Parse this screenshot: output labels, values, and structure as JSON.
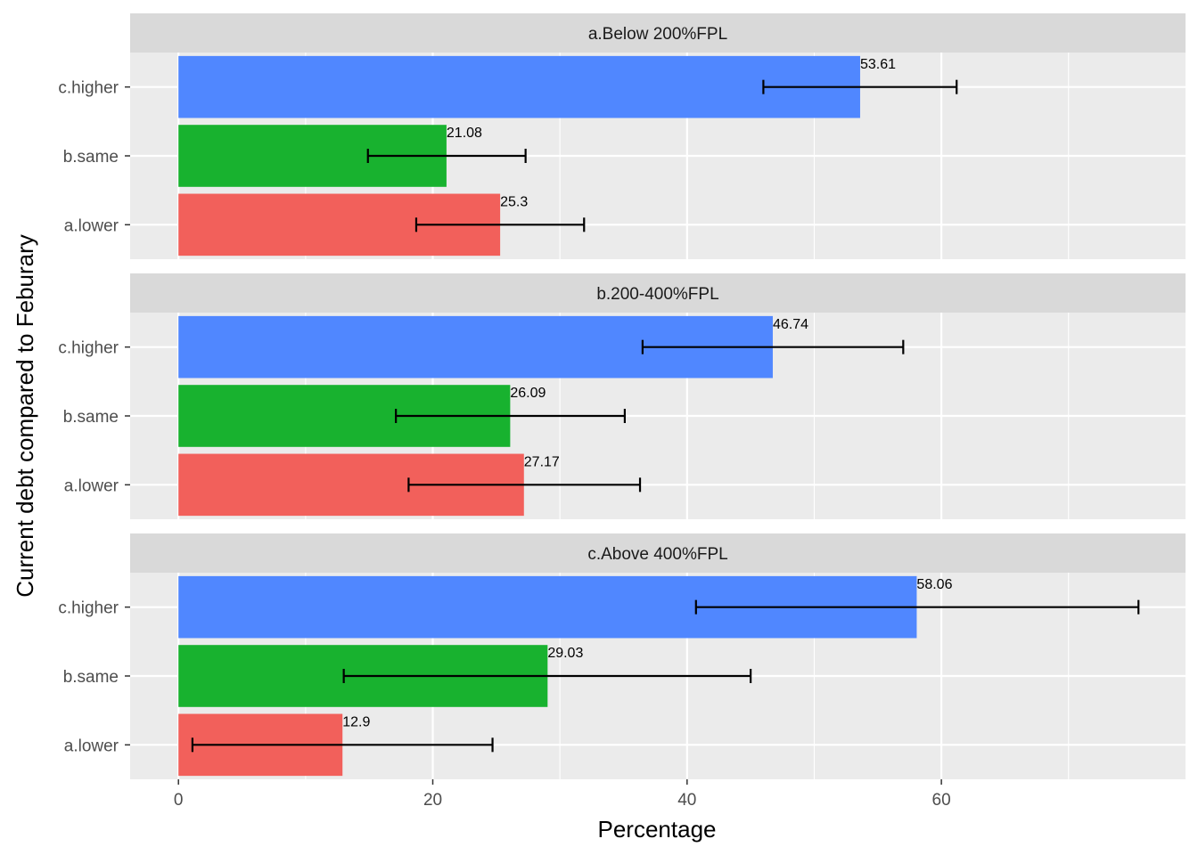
{
  "chart_data": {
    "type": "bar",
    "orientation": "horizontal",
    "xlabel": "Percentage",
    "ylabel": "Current debt compared to Feburary",
    "xlim": [
      -3.8,
      79.2
    ],
    "xticks": [
      0,
      20,
      40,
      60
    ],
    "grid": true,
    "legend": "none",
    "categories": [
      "c.higher",
      "b.same",
      "a.lower"
    ],
    "colors": {
      "c.higher": "#5087FF",
      "b.same": "#18B22F",
      "a.lower": "#F2605B"
    },
    "panels": [
      {
        "title": "a.Below 200%FPL",
        "bars": [
          {
            "category": "c.higher",
            "value": 53.61,
            "label": "53.61",
            "err_low": 46.0,
            "err_high": 61.2
          },
          {
            "category": "b.same",
            "value": 21.08,
            "label": "21.08",
            "err_low": 14.9,
            "err_high": 27.3
          },
          {
            "category": "a.lower",
            "value": 25.3,
            "label": "25.3",
            "err_low": 18.7,
            "err_high": 31.9
          }
        ]
      },
      {
        "title": "b.200-400%FPL",
        "bars": [
          {
            "category": "c.higher",
            "value": 46.74,
            "label": "46.74",
            "err_low": 36.5,
            "err_high": 57.0
          },
          {
            "category": "b.same",
            "value": 26.09,
            "label": "26.09",
            "err_low": 17.1,
            "err_high": 35.1
          },
          {
            "category": "a.lower",
            "value": 27.17,
            "label": "27.17",
            "err_low": 18.1,
            "err_high": 36.3
          }
        ]
      },
      {
        "title": "c.Above 400%FPL",
        "bars": [
          {
            "category": "c.higher",
            "value": 58.06,
            "label": "58.06",
            "err_low": 40.7,
            "err_high": 75.5
          },
          {
            "category": "b.same",
            "value": 29.03,
            "label": "29.03",
            "err_low": 13.0,
            "err_high": 45.0
          },
          {
            "category": "a.lower",
            "value": 12.9,
            "label": "12.9",
            "err_low": 1.1,
            "err_high": 24.7
          }
        ]
      }
    ]
  }
}
